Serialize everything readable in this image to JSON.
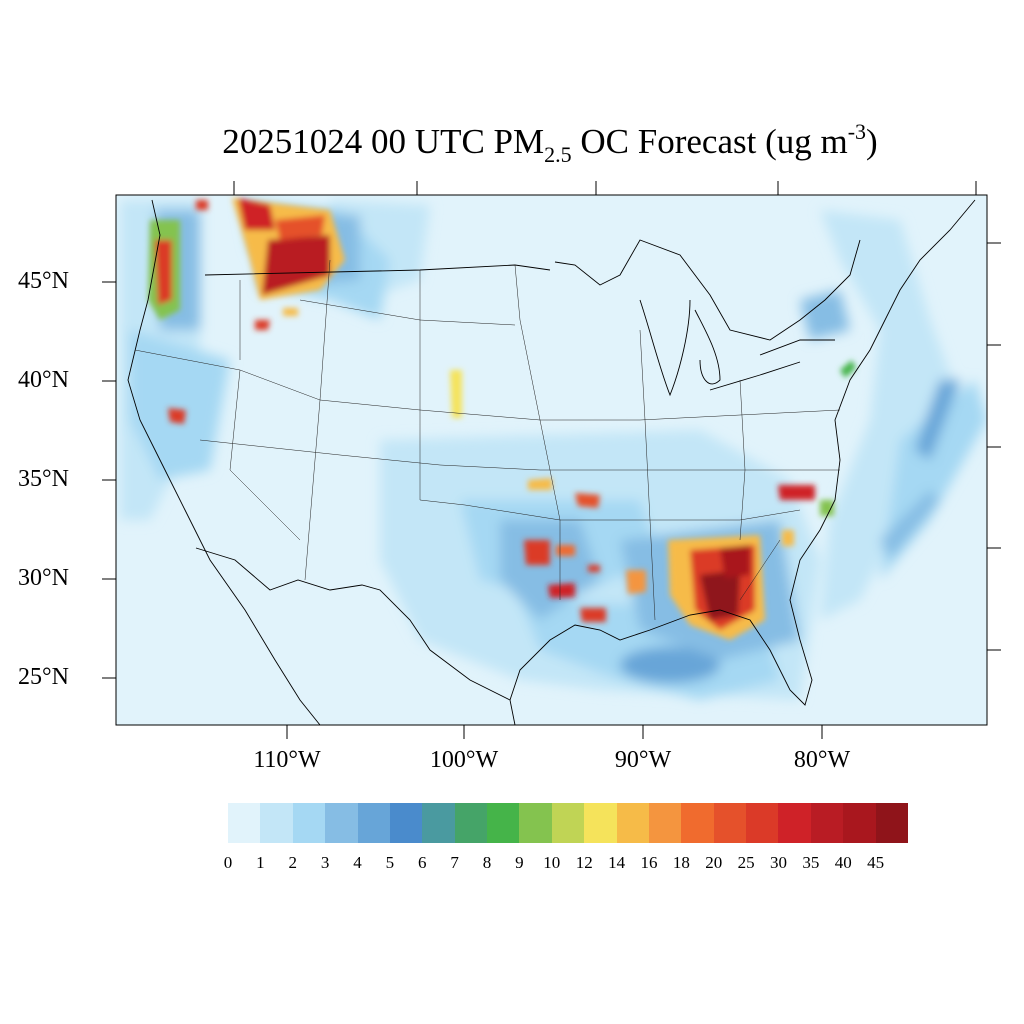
{
  "title": {
    "prefix": "20251024 00 UTC PM",
    "subscript": "2.5",
    "middle": " OC Forecast (ug m",
    "superscript": "-3",
    "suffix": ")"
  },
  "lat_labels": [
    "45°N",
    "40°N",
    "35°N",
    "30°N",
    "25°N"
  ],
  "lon_labels": [
    "110°W",
    "100°W",
    "90°W",
    "80°W"
  ],
  "colorbar": {
    "labels": [
      "0",
      "1",
      "2",
      "3",
      "4",
      "5",
      "6",
      "7",
      "8",
      "9",
      "10",
      "12",
      "14",
      "16",
      "18",
      "20",
      "25",
      "30",
      "35",
      "40",
      "45"
    ],
    "colors": [
      "#e1f3fb",
      "#c3e6f7",
      "#a5d8f3",
      "#86bde4",
      "#67a5d8",
      "#4a8bcc",
      "#4a9aa0",
      "#45a468",
      "#45b449",
      "#84c34f",
      "#c0d455",
      "#f5e35b",
      "#f6bb48",
      "#f4953f",
      "#f06b2e",
      "#e5512b",
      "#db3a28",
      "#cf2228",
      "#b91c24",
      "#a9171e",
      "#8f141a"
    ]
  },
  "map_data": {
    "type": "filled-contour",
    "variable": "PM2.5 OC",
    "units": "ug m-3",
    "region": "CONUS",
    "hotspots": [
      {
        "name": "Pacific Northwest coast",
        "level": "35-45"
      },
      {
        "name": "Idaho / Montana",
        "level": "35-45"
      },
      {
        "name": "Southeast (GA / FL / AL)",
        "level": "40-45"
      },
      {
        "name": "Louisiana / Texas Gulf",
        "level": "30-40"
      },
      {
        "name": "North Carolina",
        "level": "35-45"
      },
      {
        "name": "Central California",
        "level": "25-35"
      }
    ]
  }
}
